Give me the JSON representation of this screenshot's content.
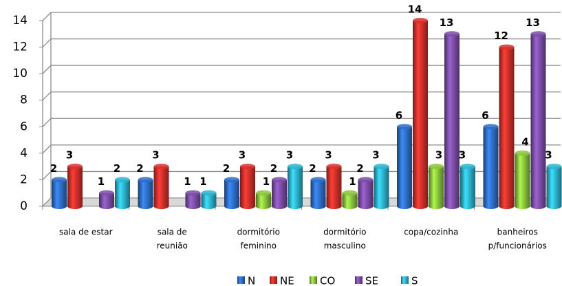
{
  "chart_data": {
    "type": "bar",
    "categories": [
      [
        "sala de estar"
      ],
      [
        "sala de",
        "reunião"
      ],
      [
        "dormitório",
        "feminino"
      ],
      [
        "dormitório",
        "masculino"
      ],
      [
        "copa/cozinha"
      ],
      [
        "banheiros",
        "p/funcionários"
      ]
    ],
    "series": [
      {
        "name": "N",
        "color": "#2f6fc8",
        "values": [
          2,
          2,
          2,
          2,
          6,
          6
        ]
      },
      {
        "name": "NE",
        "color": "#d9312b",
        "values": [
          3,
          3,
          3,
          3,
          14,
          12
        ]
      },
      {
        "name": "CO",
        "color": "#8cc63f",
        "values": [
          null,
          null,
          1,
          1,
          3,
          4
        ]
      },
      {
        "name": "SE",
        "color": "#7d4fa8",
        "values": [
          1,
          1,
          2,
          2,
          13,
          13
        ]
      },
      {
        "name": "S",
        "color": "#2fb4d0",
        "values": [
          2,
          1,
          3,
          3,
          3,
          3
        ]
      }
    ],
    "ylim": [
      0,
      14
    ],
    "yticks": [
      0,
      2,
      4,
      6,
      8,
      10,
      12,
      14
    ],
    "grid": true,
    "legend": "bottom"
  }
}
